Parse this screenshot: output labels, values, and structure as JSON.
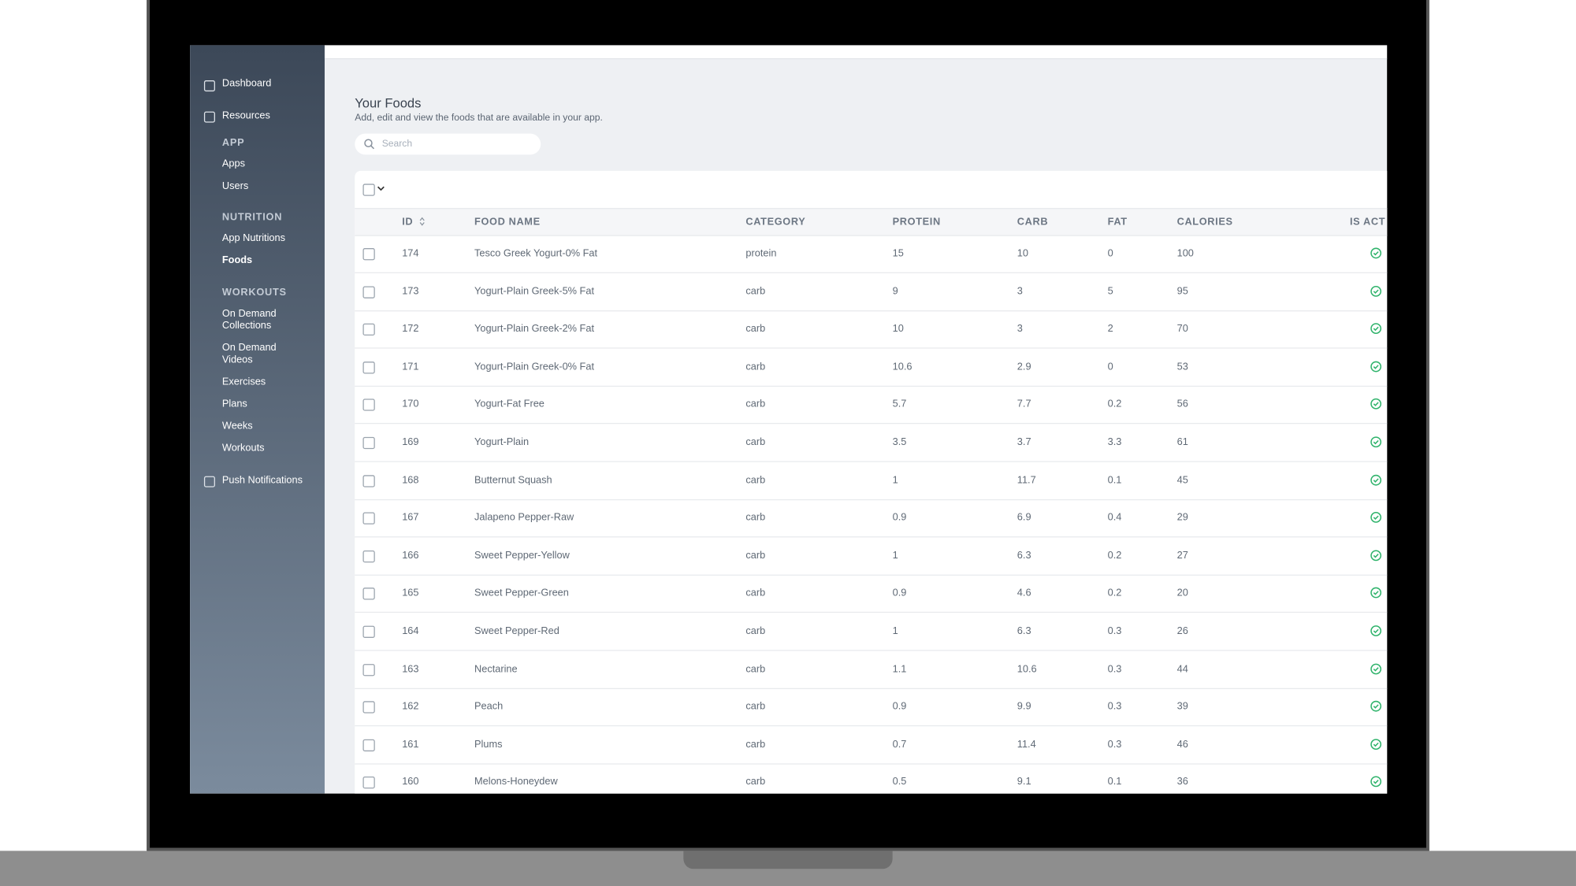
{
  "sidebar": {
    "top": [
      "Dashboard",
      "Resources"
    ],
    "sections": [
      {
        "heading": "APP",
        "items": [
          "Apps",
          "Users"
        ]
      },
      {
        "heading": "NUTRITION",
        "items": [
          "App Nutritions",
          "Foods"
        ]
      },
      {
        "heading": "WORKOUTS",
        "items": [
          "On Demand Collections",
          "On Demand Videos",
          "Exercises",
          "Plans",
          "Weeks",
          "Workouts"
        ]
      }
    ],
    "bottom": "Push Notifications"
  },
  "header": {
    "title": "Your Foods",
    "subtitle": "Add, edit and view the foods that are available in your app.",
    "search_placeholder": "Search"
  },
  "table": {
    "columns": [
      "ID",
      "FOOD NAME",
      "CATEGORY",
      "PROTEIN",
      "CARB",
      "FAT",
      "CALORIES",
      "IS ACT"
    ],
    "rows": [
      [
        174,
        "Tesco Greek Yogurt-0% Fat",
        "protein",
        15,
        10,
        0,
        100
      ],
      [
        173,
        "Yogurt-Plain Greek-5% Fat",
        "carb",
        9,
        3,
        5,
        95
      ],
      [
        172,
        "Yogurt-Plain Greek-2% Fat",
        "carb",
        10,
        3,
        2,
        70
      ],
      [
        171,
        "Yogurt-Plain Greek-0% Fat",
        "carb",
        10.6,
        2.9,
        0,
        53
      ],
      [
        170,
        "Yogurt-Fat Free",
        "carb",
        5.7,
        7.7,
        0.2,
        56
      ],
      [
        169,
        "Yogurt-Plain",
        "carb",
        3.5,
        3.7,
        3.3,
        61
      ],
      [
        168,
        "Butternut Squash",
        "carb",
        1,
        11.7,
        0.1,
        45
      ],
      [
        167,
        "Jalapeno Pepper-Raw",
        "carb",
        0.9,
        6.9,
        0.4,
        29
      ],
      [
        166,
        "Sweet Pepper-Yellow",
        "carb",
        1,
        6.3,
        0.2,
        27
      ],
      [
        165,
        "Sweet Pepper-Green",
        "carb",
        0.9,
        4.6,
        0.2,
        20
      ],
      [
        164,
        "Sweet Pepper-Red",
        "carb",
        1,
        6.3,
        0.3,
        26
      ],
      [
        163,
        "Nectarine",
        "carb",
        1.1,
        10.6,
        0.3,
        44
      ],
      [
        162,
        "Peach",
        "carb",
        0.9,
        9.9,
        0.3,
        39
      ],
      [
        161,
        "Plums",
        "carb",
        0.7,
        11.4,
        0.3,
        46
      ],
      [
        160,
        "Melons-Honeydew",
        "carb",
        0.5,
        9.1,
        0.1,
        36
      ]
    ]
  }
}
